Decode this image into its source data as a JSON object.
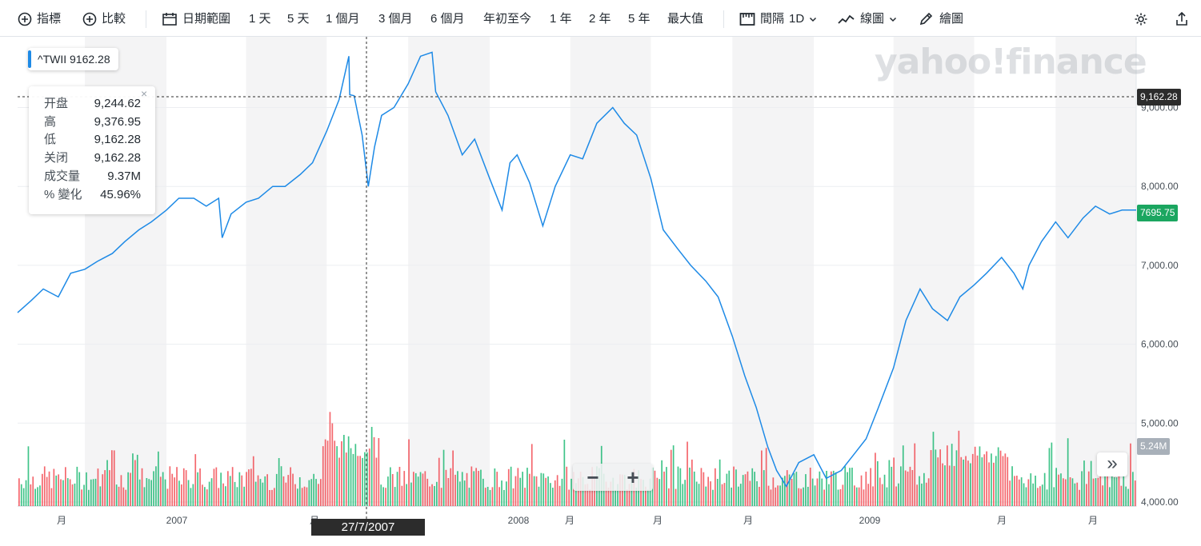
{
  "toolbar": {
    "indicators_label": "指標",
    "compare_label": "比較",
    "date_range_label": "日期範圍",
    "ranges": [
      "1 天",
      "5 天",
      "1 個月",
      "3 個月",
      "6 個月",
      "年初至今",
      "1 年",
      "2 年",
      "5 年",
      "最大值"
    ],
    "interval_label": "間隔",
    "interval_value": "1D",
    "chart_type_label": "線圖",
    "draw_label": "繪圖"
  },
  "symbol_chip": "^TWII  9162.28",
  "ohlc": {
    "rows": [
      {
        "label": "开盘",
        "value": "9,244.62"
      },
      {
        "label": "高",
        "value": "9,376.95"
      },
      {
        "label": "低",
        "value": "9,162.28"
      },
      {
        "label": "关闭",
        "value": "9,162.28"
      },
      {
        "label": "成交量",
        "value": "9.37M"
      },
      {
        "label": "% 變化",
        "value": "45.96%"
      }
    ]
  },
  "crosshair": {
    "date": "27/7/2007",
    "price_tag": "9,162.28",
    "price_value": 9162.28
  },
  "last_price_tag": "7695.75",
  "volume_tag": "5.24M",
  "watermark": "yahoo!finance",
  "colors": {
    "line": "#1e8ae6",
    "up": "#00b061",
    "down": "#f0343c",
    "last_price": "#1ba660",
    "crosshair_tag": "#2c2c2c",
    "volume_tag": "#a8b0b9"
  },
  "zoom": {
    "minus": "−",
    "plus": "+"
  },
  "scroll_label": "»",
  "chart_data": {
    "type": "line",
    "title": "",
    "ylabel": "",
    "xlabel": "",
    "ylim": [
      4000,
      9900
    ],
    "y_ticks": [
      "4,000.00",
      "5,000.00",
      "6,000.00",
      "7,000.00",
      "8,000.00",
      "9,000.00"
    ],
    "x_tick_labels": [
      "月",
      "2007",
      "月",
      "2008",
      "月",
      "月",
      "月",
      "2009",
      "月",
      "月"
    ],
    "series": [
      {
        "x": [
          "2006-07-17",
          "2006-08-01",
          "2006-08-15",
          "2006-09-01",
          "2006-09-15",
          "2006-10-01",
          "2006-10-15",
          "2006-11-01",
          "2006-11-15",
          "2006-12-01",
          "2006-12-15",
          "2007-01-01",
          "2007-01-15",
          "2007-02-01",
          "2007-02-15",
          "2007-03-01",
          "2007-03-05",
          "2007-03-15",
          "2007-04-01",
          "2007-04-15",
          "2007-05-01",
          "2007-05-15",
          "2007-06-01",
          "2007-06-15",
          "2007-07-01",
          "2007-07-15",
          "2007-07-26",
          "2007-07-27",
          "2007-08-01",
          "2007-08-10",
          "2007-08-17",
          "2007-08-24",
          "2007-09-01",
          "2007-09-15",
          "2007-10-01",
          "2007-10-15",
          "2007-10-28",
          "2007-11-01",
          "2007-11-15",
          "2007-12-01",
          "2007-12-15",
          "2008-01-01",
          "2008-01-15",
          "2008-01-24",
          "2008-02-01",
          "2008-02-15",
          "2008-03-01",
          "2008-03-15",
          "2008-04-01",
          "2008-04-15",
          "2008-05-01",
          "2008-05-19",
          "2008-06-01",
          "2008-06-15",
          "2008-07-01",
          "2008-07-15",
          "2008-08-01",
          "2008-08-15",
          "2008-09-01",
          "2008-09-15",
          "2008-10-01",
          "2008-10-15",
          "2008-10-28",
          "2008-11-10",
          "2008-11-20",
          "2008-12-01",
          "2008-12-15",
          "2009-01-01",
          "2009-01-15",
          "2009-02-01",
          "2009-02-15",
          "2009-03-01",
          "2009-03-15",
          "2009-04-01",
          "2009-04-15",
          "2009-05-01",
          "2009-05-15",
          "2009-06-01",
          "2009-06-15",
          "2009-07-01",
          "2009-07-15",
          "2009-08-01",
          "2009-08-15",
          "2009-08-25",
          "2009-09-01",
          "2009-09-15",
          "2009-10-01",
          "2009-10-15",
          "2009-11-01",
          "2009-11-15",
          "2009-12-01",
          "2009-12-15",
          "2009-12-31"
        ],
        "values": [
          6400,
          6550,
          6700,
          6600,
          6900,
          6950,
          7050,
          7150,
          7300,
          7450,
          7550,
          7700,
          7850,
          7850,
          7750,
          7850,
          7350,
          7650,
          7800,
          7850,
          8000,
          8000,
          8150,
          8300,
          8700,
          9100,
          9650,
          9162,
          9150,
          8650,
          8000,
          8500,
          8900,
          9000,
          9300,
          9650,
          9700,
          9200,
          8900,
          8400,
          8600,
          8100,
          7700,
          8300,
          8400,
          8050,
          7500,
          8000,
          8400,
          8350,
          8800,
          9000,
          8800,
          8650,
          8100,
          7450,
          7200,
          7000,
          6800,
          6600,
          6100,
          5600,
          5200,
          4700,
          4400,
          4200,
          4500,
          4600,
          4300,
          4400,
          4600,
          4800,
          5200,
          5700,
          6300,
          6700,
          6450,
          6300,
          6600,
          6750,
          6900,
          7100,
          6900,
          6700,
          7000,
          7300,
          7550,
          7350,
          7600,
          7750,
          7650,
          7700,
          7700
        ]
      }
    ],
    "volume": {
      "unit": "M",
      "last": 5.24,
      "highlighted": 9.37
    }
  }
}
